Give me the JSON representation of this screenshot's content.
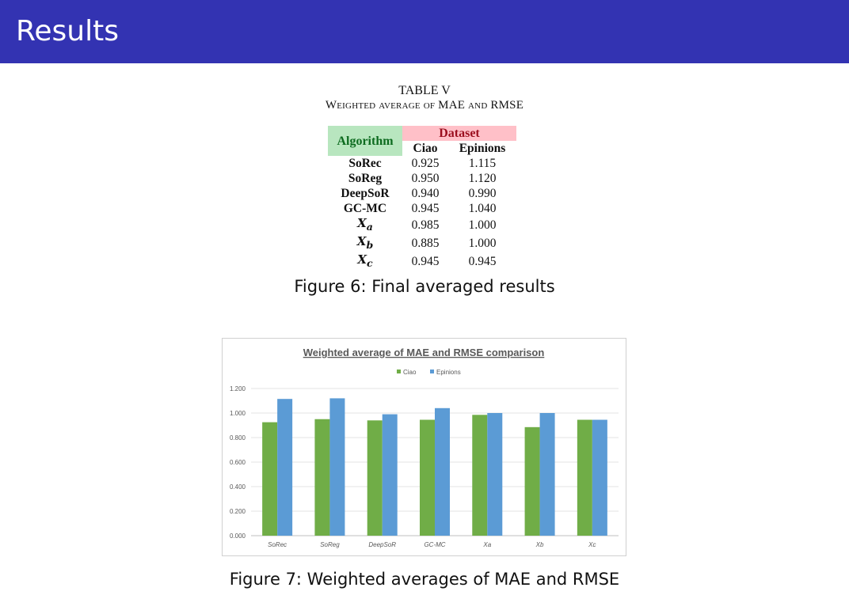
{
  "header": {
    "title": "Results"
  },
  "table": {
    "caption_line1": "TABLE V",
    "caption_line2": "Weighted average of MAE and RMSE",
    "header_algorithm": "Algorithm",
    "header_dataset": "Dataset",
    "columns": [
      "Ciao",
      "Epinions"
    ],
    "rows": [
      {
        "name": "SoRec",
        "ciao": "0.925",
        "epinions": "1.115"
      },
      {
        "name": "SoReg",
        "ciao": "0.950",
        "epinions": "1.120"
      },
      {
        "name": "DeepSoR",
        "ciao": "0.940",
        "epinions": "0.990"
      },
      {
        "name": "GC-MC",
        "ciao": "0.945",
        "epinions": "1.040"
      },
      {
        "name": "Xa",
        "sub": "a",
        "ciao": "0.985",
        "epinions": "1.000"
      },
      {
        "name": "Xb",
        "sub": "b",
        "ciao": "0.885",
        "epinions": "1.000"
      },
      {
        "name": "Xc",
        "sub": "c",
        "ciao": "0.945",
        "epinions": "0.945"
      }
    ]
  },
  "figure6_caption": "Figure 6: Final averaged results",
  "figure7_caption": "Figure 7: Weighted averages of MAE and RMSE",
  "chart_data": {
    "type": "bar",
    "title": "Weighted average of MAE and RMSE comparison",
    "categories": [
      "SoRec",
      "SoReg",
      "DeepSoR",
      "GC-MC",
      "Xa",
      "Xb",
      "Xc"
    ],
    "series": [
      {
        "name": "Ciao",
        "color": "#70ad47",
        "values": [
          0.925,
          0.95,
          0.94,
          0.945,
          0.985,
          0.885,
          0.945
        ]
      },
      {
        "name": "Epinions",
        "color": "#5b9bd5",
        "values": [
          1.115,
          1.12,
          0.99,
          1.04,
          1.0,
          1.0,
          0.945
        ]
      }
    ],
    "yticks": [
      "0.000",
      "0.200",
      "0.400",
      "0.600",
      "0.800",
      "1.000",
      "1.200"
    ],
    "ylim": [
      0,
      1.2
    ],
    "grid": true,
    "legend_position": "top"
  }
}
